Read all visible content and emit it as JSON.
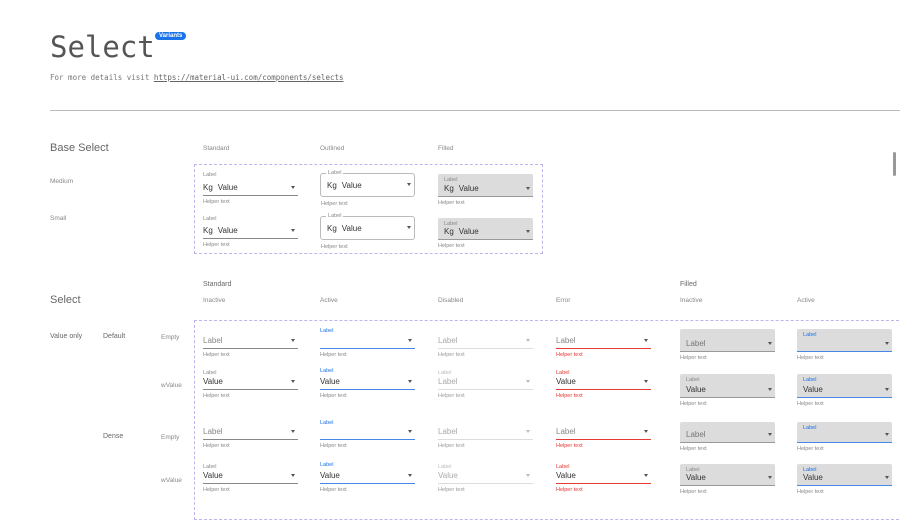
{
  "header": {
    "title": "Select",
    "badge": "Variants",
    "subtitle_prefix": "For more details visit",
    "link": "https://material-ui.com/components/selects"
  },
  "base": {
    "title": "Base Select",
    "columns": [
      "Standard",
      "Outlined",
      "Filled"
    ],
    "rows": [
      "Medium",
      "Small"
    ],
    "label": "Label",
    "prefix": "Kg",
    "value": "Value",
    "helper": "Helper text"
  },
  "select": {
    "title": "Select",
    "group_standard": "Standard",
    "group_filled": "Filled",
    "columns": [
      "Inactive",
      "Active",
      "Disabled",
      "Error",
      "Inactive",
      "Active"
    ],
    "section": "Value only",
    "sizes": [
      "Default",
      "Dense"
    ],
    "rows": [
      "Empty",
      "wValue"
    ],
    "label": "Label",
    "value": "Value",
    "helper": "Helper text"
  },
  "colors": {
    "accent": "#1a73e8",
    "active_line": "#4a86e8",
    "error": "#e53935",
    "filled_bg": "#dcdcdc",
    "dash": "#b9b7ee"
  }
}
